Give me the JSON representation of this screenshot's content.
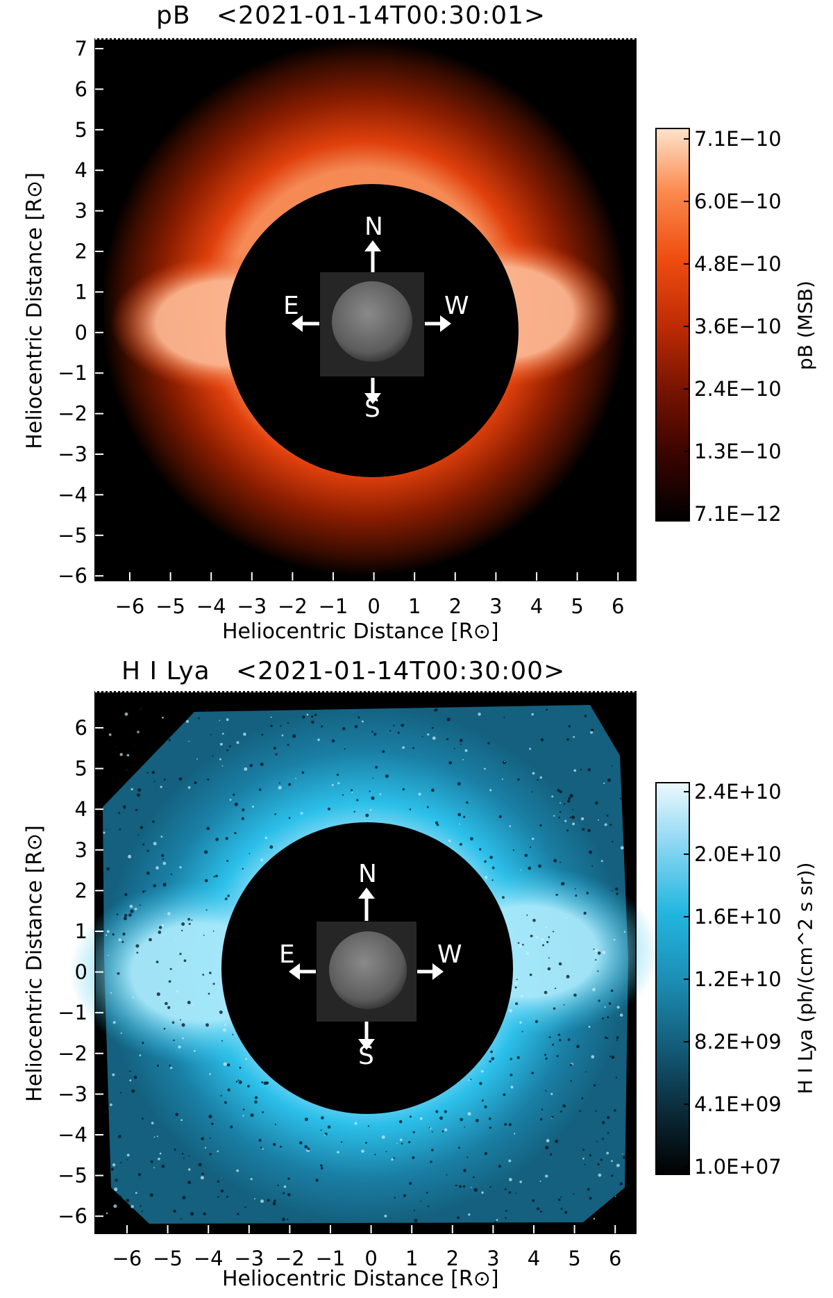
{
  "panels": [
    {
      "id": "pb",
      "title": "pB   <2021-01-14T00:30:01>",
      "xlabel": "Heliocentric Distance [R⊙]",
      "ylabel": "Heliocentric Distance [R⊙]",
      "xticks": [
        "-6",
        "-5",
        "-4",
        "-3",
        "-2",
        "-1",
        "0",
        "1",
        "2",
        "3",
        "4",
        "5",
        "6"
      ],
      "yticks": [
        "7",
        "6",
        "5",
        "4",
        "3",
        "2",
        "1",
        "0",
        "-1",
        "-2",
        "-3",
        "-4",
        "-5",
        "-6"
      ],
      "compass": {
        "north": "N",
        "south": "S",
        "east": "E",
        "west": "W"
      },
      "colorbar": {
        "label": "pB (MSB)",
        "ticks": [
          "7.1E−10",
          "6.0E−10",
          "4.8E−10",
          "3.6E−10",
          "2.4E−10",
          "1.3E−10",
          "7.1E−12"
        ],
        "colormap": [
          "#000000",
          "#3a0400",
          "#7a1400",
          "#c02c04",
          "#f04d10",
          "#fb8a4e",
          "#fde3cc"
        ]
      },
      "image_colors": [
        "#000000",
        "#401000",
        "#8a1d00",
        "#e0400c",
        "#f59a6a"
      ]
    },
    {
      "id": "lya",
      "title": "H I Lya   <2021-01-14T00:30:00>",
      "xlabel": "Heliocentric Distance [R⊙]",
      "ylabel": "Heliocentric Distance [R⊙]",
      "xticks": [
        "-6",
        "-5",
        "-4",
        "-3",
        "-2",
        "-1",
        "0",
        "1",
        "2",
        "3",
        "4",
        "5",
        "6"
      ],
      "yticks": [
        "6",
        "5",
        "4",
        "3",
        "2",
        "1",
        "0",
        "-1",
        "-2",
        "-3",
        "-4",
        "-5",
        "-6"
      ],
      "compass": {
        "north": "N",
        "south": "S",
        "east": "E",
        "west": "W"
      },
      "colorbar": {
        "label": "H I Lya (ph/(cm^2 s sr))",
        "ticks": [
          "2.4E+10",
          "2.0E+10",
          "1.6E+10",
          "1.2E+10",
          "8.2E+09",
          "4.1E+09",
          "1.0E+07"
        ],
        "colormap": [
          "#000000",
          "#0b2d3c",
          "#14607e",
          "#1c8fb5",
          "#23b6e0",
          "#8ad6f2",
          "#ecf9fe"
        ]
      },
      "image_colors": [
        "#000000",
        "#0d3a4c",
        "#1a7fa5",
        "#2cc0ea",
        "#9ee3f8"
      ]
    }
  ]
}
